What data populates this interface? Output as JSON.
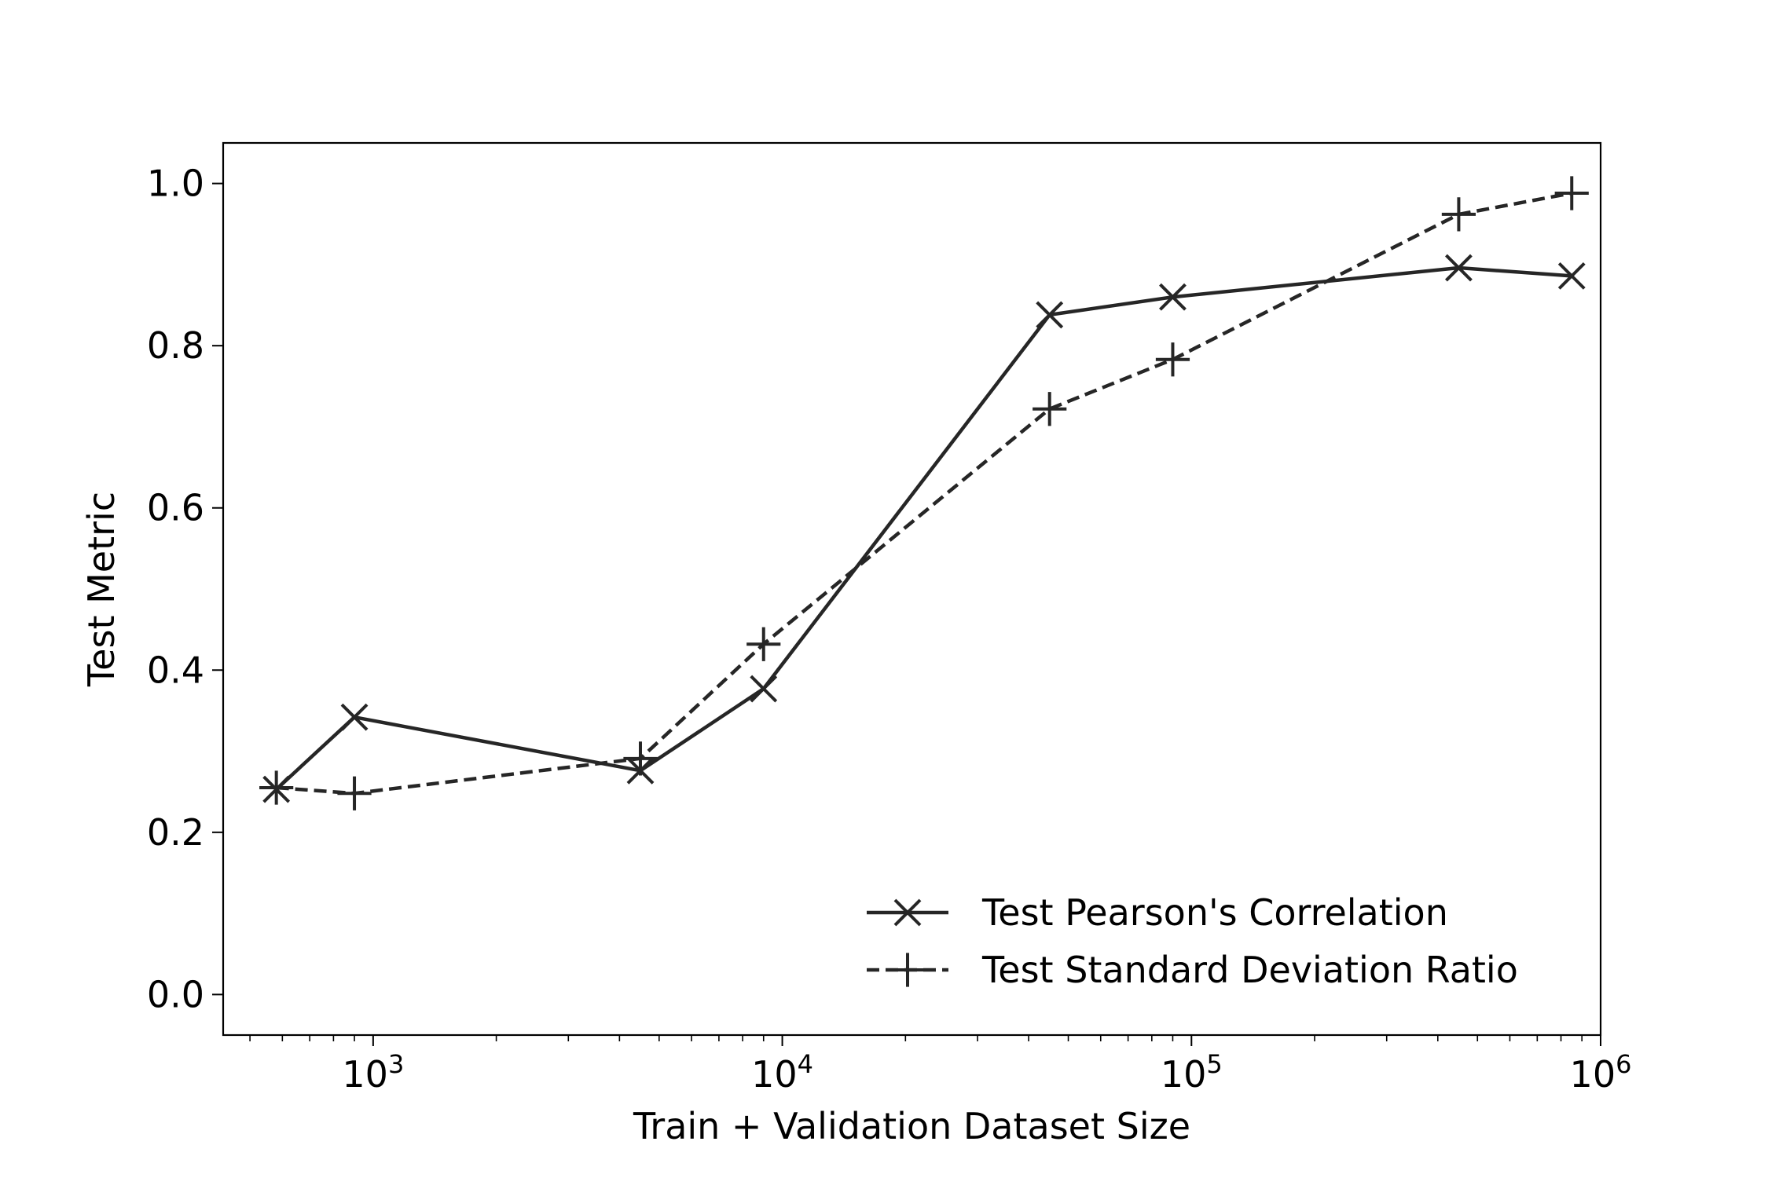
{
  "chart_data": {
    "type": "line",
    "xlabel": "Train + Validation Dataset Size",
    "ylabel": "Test Metric",
    "xscale": "log",
    "xlim": [
      430,
      1000000
    ],
    "ylim": [
      -0.05,
      1.05
    ],
    "x_ticks": [
      {
        "value": 1000,
        "base": "10",
        "exp": "3"
      },
      {
        "value": 10000,
        "base": "10",
        "exp": "4"
      },
      {
        "value": 100000,
        "base": "10",
        "exp": "5"
      },
      {
        "value": 1000000,
        "base": "10",
        "exp": "6"
      }
    ],
    "y_ticks": [
      {
        "value": 0.0,
        "label": "0.0"
      },
      {
        "value": 0.2,
        "label": "0.2"
      },
      {
        "value": 0.4,
        "label": "0.4"
      },
      {
        "value": 0.6,
        "label": "0.6"
      },
      {
        "value": 0.8,
        "label": "0.8"
      },
      {
        "value": 1.0,
        "label": "1.0"
      }
    ],
    "legend_position": "lower-right",
    "grid": false,
    "series": [
      {
        "name": "Test Pearson's Correlation",
        "marker": "x",
        "line_style": "solid",
        "color": "#262626",
        "x": [
          580,
          900,
          4500,
          9000,
          45000,
          90000,
          450000,
          850000
        ],
        "y": [
          0.253,
          0.342,
          0.276,
          0.377,
          0.838,
          0.86,
          0.896,
          0.886
        ]
      },
      {
        "name": "Test Standard Deviation Ratio",
        "marker": "plus",
        "line_style": "dashed",
        "color": "#262626",
        "x": [
          580,
          900,
          4500,
          9000,
          45000,
          90000,
          450000,
          850000
        ],
        "y": [
          0.255,
          0.248,
          0.291,
          0.432,
          0.722,
          0.783,
          0.962,
          0.988
        ]
      }
    ]
  }
}
